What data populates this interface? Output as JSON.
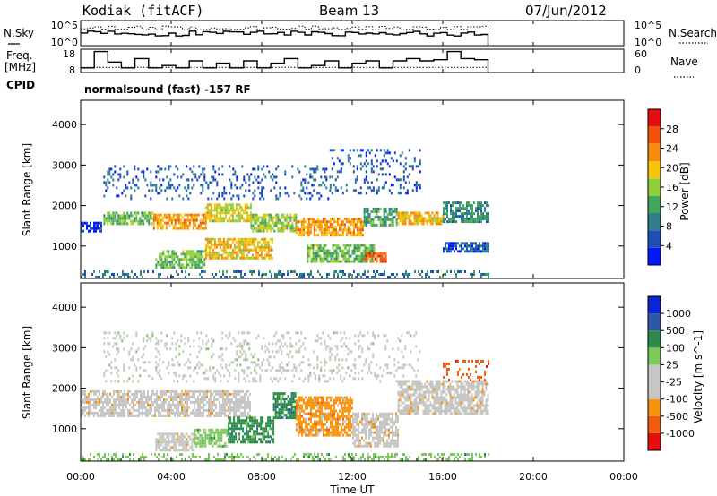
{
  "header": {
    "site": "Kodiak (fitACF)",
    "beam": "Beam 13",
    "date": "07/Jun/2012",
    "program": "normalsound (fast) -157 RF"
  },
  "panels": {
    "nsky": {
      "left_label": "N.Sky",
      "right_label": "N.Search",
      "ticks_left": [
        "10^5",
        "10^0"
      ],
      "ticks_right": [
        "10^5",
        "10^0"
      ]
    },
    "freq": {
      "left_label_1": "Freq.",
      "left_label_2": "[MHz]",
      "right_label": "Nave",
      "ticks_left": [
        "18",
        "8"
      ],
      "ticks_right": [
        "60",
        "0"
      ]
    },
    "cpid": {
      "label": "CPID"
    }
  },
  "colors": {
    "power": [
      "#0018ff",
      "#1f4fb6",
      "#2f7f8a",
      "#42a65c",
      "#8ecf3a",
      "#f6c40a",
      "#f78a0c",
      "#f4520a",
      "#e80e0e"
    ],
    "velocity": [
      "#e80e0e",
      "#f25a0e",
      "#f7920c",
      "#c6c6c4",
      "#c6c6c4",
      "#7cc95a",
      "#2a8b4b",
      "#2f57a6",
      "#0a25d6"
    ]
  },
  "chart_data": [
    {
      "type": "heatmap",
      "name": "power",
      "ylabel": "Slant Range [km]",
      "yticks": [
        "1000",
        "2000",
        "3000",
        "4000"
      ],
      "ylim": [
        200,
        4600
      ],
      "xlim": [
        0,
        24
      ],
      "colorbar_label": "Power [dB]",
      "colorbar_ticks": [
        "4",
        "8",
        "12",
        "16",
        "20",
        "24",
        "28"
      ],
      "colorbar_range": [
        0,
        32
      ],
      "bands": [
        {
          "t": [
            0.0,
            0.9
          ],
          "r": [
            1380,
            1600
          ],
          "v": 4
        },
        {
          "t": [
            1.0,
            3.2
          ],
          "r": [
            1550,
            1850
          ],
          "v": 14
        },
        {
          "t": [
            3.2,
            5.5
          ],
          "r": [
            1450,
            1800
          ],
          "v": 22
        },
        {
          "t": [
            5.5,
            7.5
          ],
          "r": [
            1650,
            2050
          ],
          "v": 18
        },
        {
          "t": [
            7.5,
            9.5
          ],
          "r": [
            1350,
            1800
          ],
          "v": 16
        },
        {
          "t": [
            9.5,
            12.5
          ],
          "r": [
            1250,
            1700
          ],
          "v": 22
        },
        {
          "t": [
            12.5,
            14.0
          ],
          "r": [
            1500,
            1950
          ],
          "v": 12
        },
        {
          "t": [
            14.0,
            16.0
          ],
          "r": [
            1550,
            1850
          ],
          "v": 20
        },
        {
          "t": [
            16.0,
            18.0
          ],
          "r": [
            1600,
            2100
          ],
          "v": 10
        },
        {
          "t": [
            3.3,
            5.5
          ],
          "r": [
            500,
            900
          ],
          "v": 14
        },
        {
          "t": [
            5.5,
            8.5
          ],
          "r": [
            700,
            1200
          ],
          "v": 20
        },
        {
          "t": [
            10.0,
            13.0
          ],
          "r": [
            600,
            1050
          ],
          "v": 14
        },
        {
          "t": [
            12.5,
            13.5
          ],
          "r": [
            650,
            850
          ],
          "v": 26
        },
        {
          "t": [
            16.0,
            18.0
          ],
          "r": [
            900,
            1100
          ],
          "v": 6
        },
        {
          "t": [
            1.0,
            11.0
          ],
          "r": [
            2200,
            3000
          ],
          "v": 6
        },
        {
          "t": [
            11.0,
            15.0
          ],
          "r": [
            2300,
            3400
          ],
          "v": 6
        },
        {
          "t": [
            0.0,
            18.0
          ],
          "r": [
            250,
            400
          ],
          "v": 8
        }
      ]
    },
    {
      "type": "heatmap",
      "name": "velocity",
      "ylabel": "Slant Range [km]",
      "yticks": [
        "1000",
        "2000",
        "3000",
        "4000"
      ],
      "ylim": [
        200,
        4600
      ],
      "xlim": [
        0,
        24
      ],
      "xlabel": "Time UT",
      "xticks": [
        "00:00",
        "04:00",
        "08:00",
        "12:00",
        "16:00",
        "20:00",
        "00:00"
      ],
      "colorbar_label": "Velocity [m s^-1]",
      "colorbar_ticks": [
        "-1000",
        "-500",
        "-100",
        "-25",
        "25",
        "100",
        "500",
        "1000"
      ],
      "bands": [
        {
          "t": [
            0.0,
            7.5
          ],
          "r": [
            1350,
            1950
          ],
          "v": 3
        },
        {
          "t": [
            3.3,
            5.0
          ],
          "r": [
            500,
            900
          ],
          "v": 3
        },
        {
          "t": [
            5.0,
            6.5
          ],
          "r": [
            600,
            1000
          ],
          "v": 5
        },
        {
          "t": [
            6.5,
            8.5
          ],
          "r": [
            700,
            1300
          ],
          "v": 6
        },
        {
          "t": [
            8.5,
            9.5
          ],
          "r": [
            1300,
            1900
          ],
          "v": 6
        },
        {
          "t": [
            9.5,
            12.0
          ],
          "r": [
            850,
            1800
          ],
          "v": 2
        },
        {
          "t": [
            12.0,
            14.0
          ],
          "r": [
            600,
            1400
          ],
          "v": 3
        },
        {
          "t": [
            14.0,
            18.0
          ],
          "r": [
            1400,
            2200
          ],
          "v": 3
        },
        {
          "t": [
            16.0,
            18.0
          ],
          "r": [
            2200,
            2700
          ],
          "v": 1
        },
        {
          "t": [
            1.0,
            15.0
          ],
          "r": [
            2200,
            3400
          ],
          "v": 4
        },
        {
          "t": [
            0.0,
            18.0
          ],
          "r": [
            250,
            400
          ],
          "v": 5
        }
      ]
    }
  ]
}
